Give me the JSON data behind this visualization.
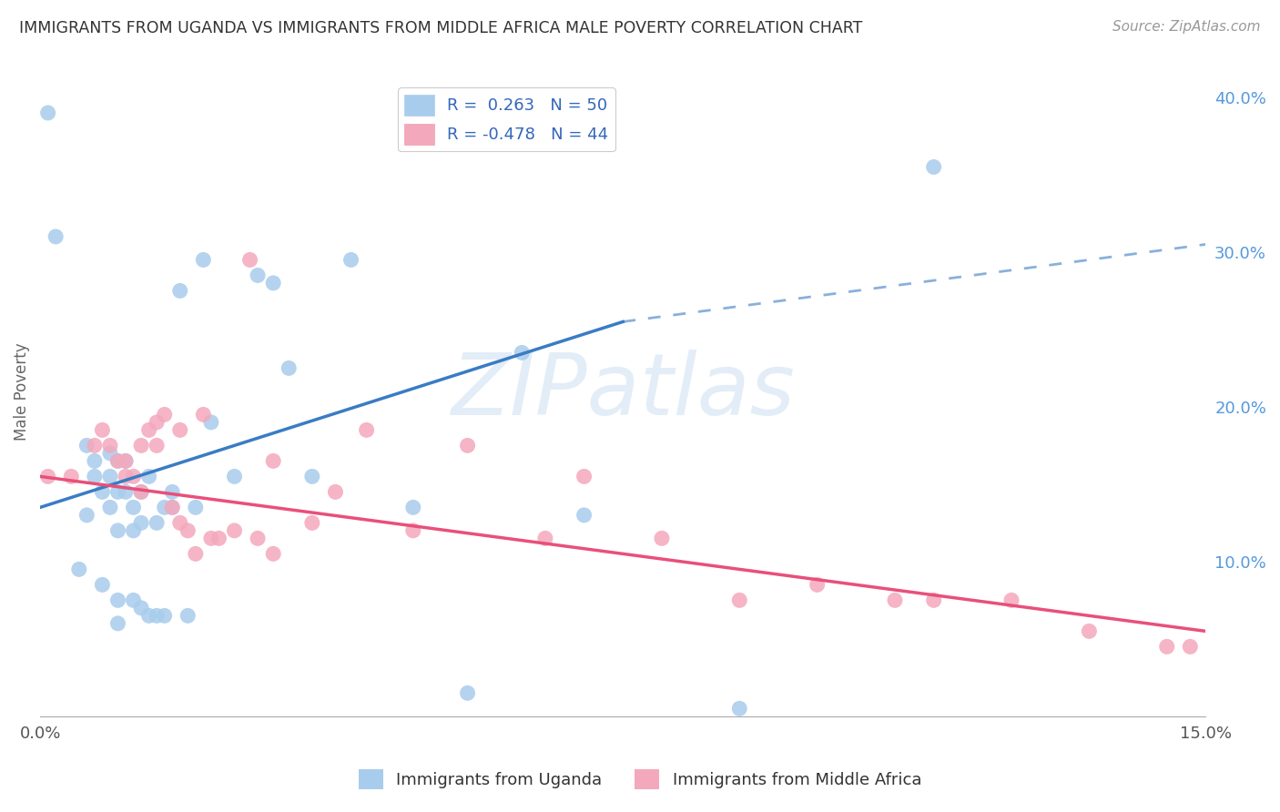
{
  "title": "IMMIGRANTS FROM UGANDA VS IMMIGRANTS FROM MIDDLE AFRICA MALE POVERTY CORRELATION CHART",
  "source": "Source: ZipAtlas.com",
  "ylabel": "Male Poverty",
  "xlim": [
    0.0,
    0.15
  ],
  "ylim": [
    0.0,
    0.42
  ],
  "color_uganda": "#A8CCEC",
  "color_middle_africa": "#F4A8BC",
  "color_line_uganda": "#3A7CC4",
  "color_line_middle_africa": "#E8507A",
  "bg_color": "#FFFFFF",
  "grid_color": "#DDDDDD",
  "uganda_x": [
    0.001,
    0.002,
    0.005,
    0.006,
    0.006,
    0.007,
    0.007,
    0.008,
    0.008,
    0.009,
    0.009,
    0.009,
    0.01,
    0.01,
    0.01,
    0.01,
    0.01,
    0.011,
    0.011,
    0.012,
    0.012,
    0.012,
    0.013,
    0.013,
    0.013,
    0.014,
    0.014,
    0.015,
    0.015,
    0.016,
    0.016,
    0.017,
    0.017,
    0.018,
    0.019,
    0.02,
    0.021,
    0.022,
    0.025,
    0.028,
    0.03,
    0.032,
    0.035,
    0.04,
    0.048,
    0.055,
    0.062,
    0.07,
    0.09,
    0.115
  ],
  "uganda_y": [
    0.39,
    0.31,
    0.095,
    0.175,
    0.13,
    0.165,
    0.155,
    0.145,
    0.085,
    0.17,
    0.155,
    0.135,
    0.165,
    0.145,
    0.12,
    0.075,
    0.06,
    0.165,
    0.145,
    0.135,
    0.12,
    0.075,
    0.145,
    0.125,
    0.07,
    0.155,
    0.065,
    0.125,
    0.065,
    0.135,
    0.065,
    0.145,
    0.135,
    0.275,
    0.065,
    0.135,
    0.295,
    0.19,
    0.155,
    0.285,
    0.28,
    0.225,
    0.155,
    0.295,
    0.135,
    0.015,
    0.235,
    0.13,
    0.005,
    0.355
  ],
  "middle_africa_x": [
    0.001,
    0.004,
    0.007,
    0.008,
    0.009,
    0.01,
    0.011,
    0.011,
    0.012,
    0.013,
    0.013,
    0.014,
    0.015,
    0.015,
    0.016,
    0.017,
    0.018,
    0.018,
    0.019,
    0.02,
    0.021,
    0.022,
    0.023,
    0.025,
    0.027,
    0.028,
    0.03,
    0.03,
    0.035,
    0.038,
    0.042,
    0.048,
    0.055,
    0.065,
    0.07,
    0.08,
    0.09,
    0.1,
    0.11,
    0.115,
    0.125,
    0.135,
    0.145,
    0.148
  ],
  "middle_africa_y": [
    0.155,
    0.155,
    0.175,
    0.185,
    0.175,
    0.165,
    0.165,
    0.155,
    0.155,
    0.175,
    0.145,
    0.185,
    0.175,
    0.19,
    0.195,
    0.135,
    0.125,
    0.185,
    0.12,
    0.105,
    0.195,
    0.115,
    0.115,
    0.12,
    0.295,
    0.115,
    0.105,
    0.165,
    0.125,
    0.145,
    0.185,
    0.12,
    0.175,
    0.115,
    0.155,
    0.115,
    0.075,
    0.085,
    0.075,
    0.075,
    0.075,
    0.055,
    0.045,
    0.045
  ],
  "line_uganda_x0": 0.0,
  "line_uganda_y0": 0.135,
  "line_uganda_x1": 0.075,
  "line_uganda_y1": 0.255,
  "line_dash_x0": 0.075,
  "line_dash_y0": 0.255,
  "line_dash_x1": 0.15,
  "line_dash_y1": 0.305,
  "line_middle_x0": 0.0,
  "line_middle_y0": 0.155,
  "line_middle_x1": 0.15,
  "line_middle_y1": 0.055
}
